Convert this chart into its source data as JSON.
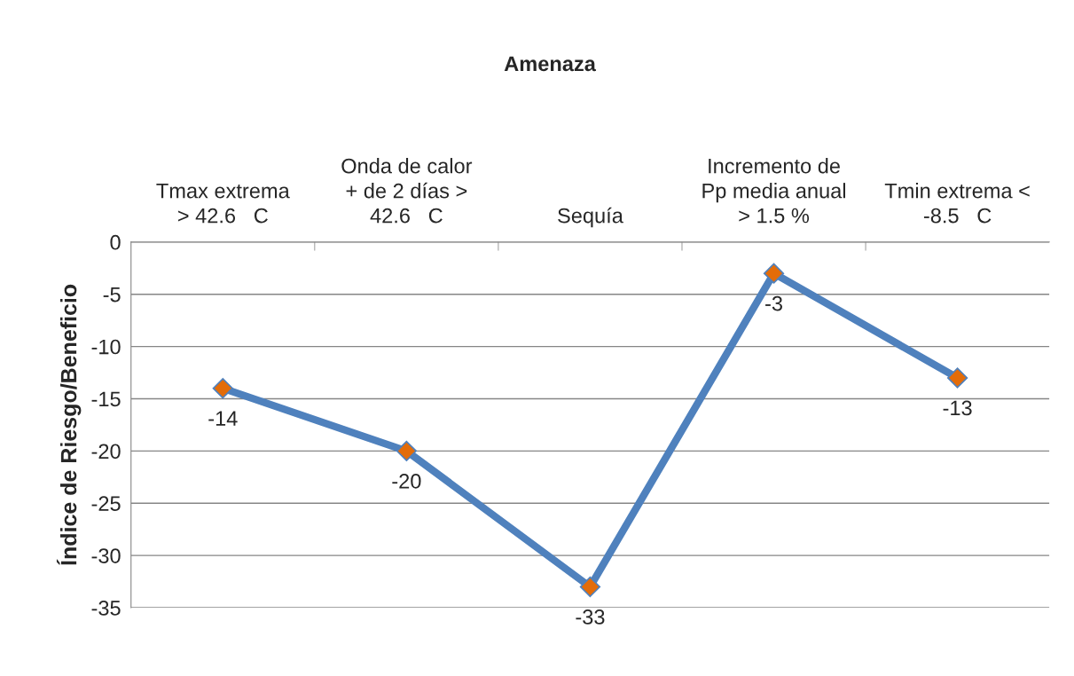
{
  "chart_data": {
    "type": "line",
    "title": "Amenaza",
    "ylabel": "Índice de Riesgo/Beneficio",
    "categories": [
      "Tmax extrema\n> 42.6   C",
      "Onda de calor\n+ de 2 días >\n42.6   C",
      "Sequía",
      "Incremento de\nPp media anual\n> 1.5 %",
      "Tmin extrema <\n-8.5   C"
    ],
    "series": [
      {
        "color": "#4f81bd",
        "values": [
          -14,
          -20,
          -33,
          -3,
          -13
        ]
      }
    ],
    "marker": "diamond",
    "data_labels": true,
    "grid": "y",
    "ylim": [
      -35,
      0
    ],
    "yticks": [
      -35,
      -30,
      -25,
      -20,
      -15,
      -10,
      -5,
      0
    ]
  }
}
